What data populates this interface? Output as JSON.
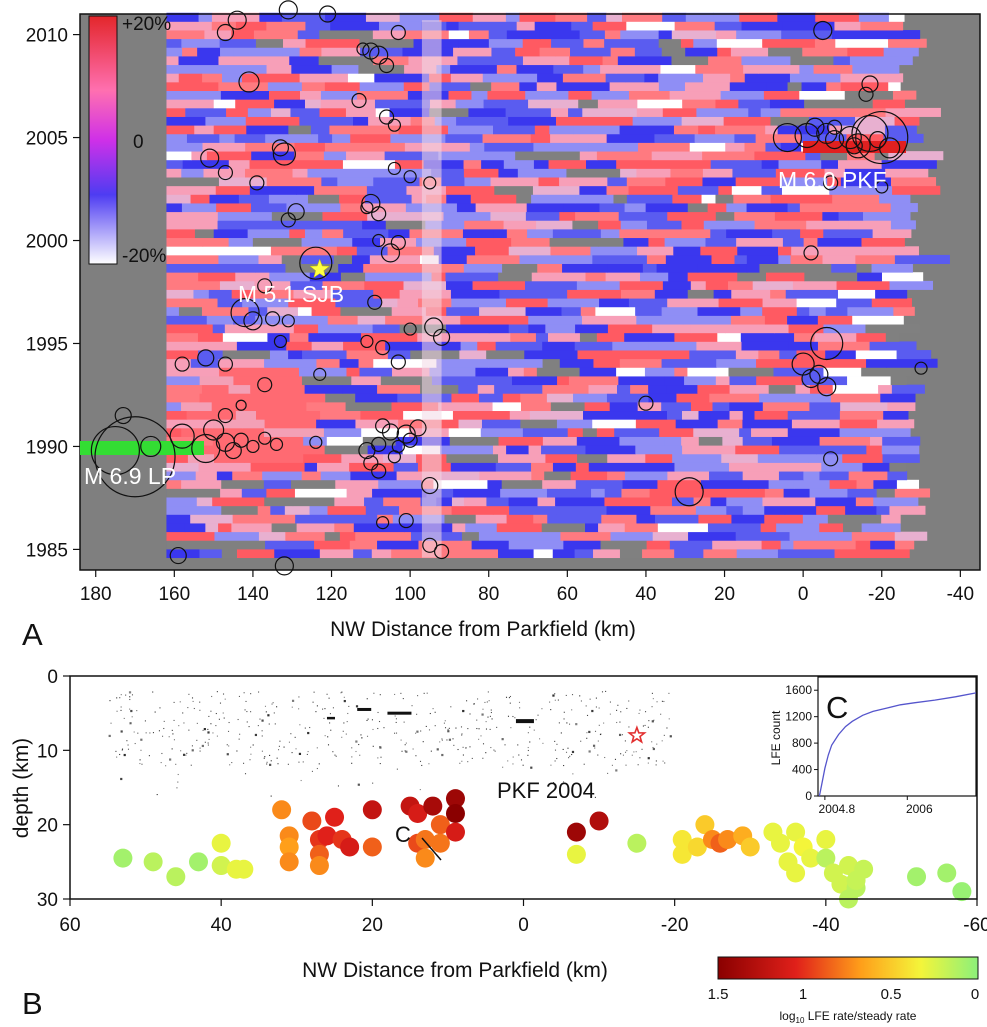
{
  "colors": {
    "map_pos": "#ff5a62",
    "map_neg": "#3a37ee",
    "map_mid": "#ffffff",
    "gap": "#808080",
    "lp_bar": "#33dd33",
    "pkf_bar": "#e12020",
    "sjb_star": "#ffff44",
    "pkf2004_star": "#e23030",
    "inset_line": "#5555cc"
  },
  "panelA": {
    "label": "A",
    "xlabel": "NW Distance from Parkfield (km)",
    "xticks": [
      "180",
      "160",
      "140",
      "120",
      "100",
      "80",
      "60",
      "40",
      "20",
      "0",
      "-20",
      "-40"
    ],
    "yticks": [
      "2010",
      "2005",
      "2000",
      "1995",
      "1990",
      "1985"
    ],
    "colorbar_labels": [
      "+20%",
      "0",
      "-20%"
    ],
    "annotations": {
      "lp": "M 6.9 LP",
      "sjb": "M 5.1 SJB",
      "pkf": "M 6.0 PKF"
    }
  },
  "panelB": {
    "label": "B",
    "xlabel": "NW Distance from Parkfield (km)",
    "ylabel": "depth (km)",
    "xticks": [
      "60",
      "40",
      "20",
      "0",
      "-20",
      "-40",
      "-60"
    ],
    "yticks": [
      "0",
      "10",
      "20",
      "30"
    ],
    "pkf_label": "PKF 2004",
    "c_marker": "C",
    "colorbar_ticks": [
      "1.5",
      "1",
      "0.5",
      "0"
    ],
    "colorbar_title_main": "log",
    "colorbar_title_sub": "10",
    "colorbar_title_rest": " LFE rate/steady rate"
  },
  "panelC": {
    "label": "C",
    "ylabel": "LFE count",
    "xticks": [
      "2004.8",
      "2006"
    ],
    "yticks": [
      "0",
      "400",
      "800",
      "1200",
      "1600"
    ]
  },
  "chart_data": [
    {
      "type": "heatmap",
      "title": "",
      "xlabel": "NW Distance from Parkfield (km)",
      "ylabel": "",
      "xlim": [
        184,
        -45
      ],
      "ylim": [
        1984,
        2011
      ],
      "colorbar": {
        "range": [
          "-20%",
          "+20%"
        ],
        "mid": "0"
      },
      "events": [
        {
          "name": "M 6.9 LP",
          "x_range": [
            184,
            153
          ],
          "y": 1989.8
        },
        {
          "name": "M 5.1 SJB",
          "x": 123,
          "y": 1998.7
        },
        {
          "name": "M 6.0 PKF",
          "x_range": [
            -1,
            -25
          ],
          "y": 2004.8
        }
      ],
      "earthquakes": [
        {
          "x": 170,
          "y": 1989.5,
          "r": 40
        },
        {
          "x": 175,
          "y": 1989.8,
          "r": 24
        },
        {
          "x": 173,
          "y": 1991.5,
          "r": 8
        },
        {
          "x": 166,
          "y": 1990.0,
          "r": 10
        },
        {
          "x": 158,
          "y": 1990.5,
          "r": 12
        },
        {
          "x": 152,
          "y": 1989.9,
          "r": 14
        },
        {
          "x": 150,
          "y": 1990.8,
          "r": 10
        },
        {
          "x": 147,
          "y": 1990.2,
          "r": 9
        },
        {
          "x": 145,
          "y": 1989.8,
          "r": 8
        },
        {
          "x": 143,
          "y": 1990.3,
          "r": 7
        },
        {
          "x": 140,
          "y": 1990.0,
          "r": 6
        },
        {
          "x": 137,
          "y": 1990.4,
          "r": 6
        },
        {
          "x": 134,
          "y": 1990.1,
          "r": 6
        },
        {
          "x": 147,
          "y": 1991.5,
          "r": 7
        },
        {
          "x": 143,
          "y": 1992.0,
          "r": 5
        },
        {
          "x": 137,
          "y": 1993.0,
          "r": 7
        },
        {
          "x": 142,
          "y": 1996.5,
          "r": 14
        },
        {
          "x": 140,
          "y": 1996.1,
          "r": 9
        },
        {
          "x": 135,
          "y": 1996.2,
          "r": 7
        },
        {
          "x": 131,
          "y": 1996.1,
          "r": 6
        },
        {
          "x": 133,
          "y": 1995.1,
          "r": 6
        },
        {
          "x": 147,
          "y": 1994.0,
          "r": 7
        },
        {
          "x": 152,
          "y": 1994.3,
          "r": 8
        },
        {
          "x": 158,
          "y": 1994.0,
          "r": 7
        },
        {
          "x": 159,
          "y": 1984.7,
          "r": 8
        },
        {
          "x": 132,
          "y": 1984.2,
          "r": 9
        },
        {
          "x": 124,
          "y": 1998.9,
          "r": 16
        },
        {
          "x": 137,
          "y": 1997.8,
          "r": 7
        },
        {
          "x": 131,
          "y": 2001.0,
          "r": 7
        },
        {
          "x": 129,
          "y": 2001.4,
          "r": 8
        },
        {
          "x": 133,
          "y": 2004.5,
          "r": 8
        },
        {
          "x": 132,
          "y": 2004.2,
          "r": 11
        },
        {
          "x": 139,
          "y": 2002.8,
          "r": 7
        },
        {
          "x": 147,
          "y": 2003.3,
          "r": 7
        },
        {
          "x": 151,
          "y": 2004.0,
          "r": 9
        },
        {
          "x": 141,
          "y": 2007.7,
          "r": 10
        },
        {
          "x": 144,
          "y": 2010.7,
          "r": 9
        },
        {
          "x": 147,
          "y": 2010.1,
          "r": 8
        },
        {
          "x": 131,
          "y": 2011.2,
          "r": 9
        },
        {
          "x": 121,
          "y": 2011.0,
          "r": 8
        },
        {
          "x": 103,
          "y": 2010.1,
          "r": 7
        },
        {
          "x": 112,
          "y": 2009.3,
          "r": 6
        },
        {
          "x": 110,
          "y": 2009.2,
          "r": 8
        },
        {
          "x": 108,
          "y": 2009.0,
          "r": 9
        },
        {
          "x": 106,
          "y": 2008.5,
          "r": 7
        },
        {
          "x": 110,
          "y": 2001.8,
          "r": 9
        },
        {
          "x": 108,
          "y": 2001.3,
          "r": 7
        },
        {
          "x": 111,
          "y": 2001.6,
          "r": 6
        },
        {
          "x": 113,
          "y": 2006.8,
          "r": 7
        },
        {
          "x": 104,
          "y": 2003.5,
          "r": 6
        },
        {
          "x": 106,
          "y": 2006.0,
          "r": 7
        },
        {
          "x": 104,
          "y": 2005.6,
          "r": 6
        },
        {
          "x": 108,
          "y": 2000.0,
          "r": 6
        },
        {
          "x": 103,
          "y": 1999.9,
          "r": 7
        },
        {
          "x": 105,
          "y": 1999.4,
          "r": 9
        },
        {
          "x": 109,
          "y": 1997.0,
          "r": 7
        },
        {
          "x": 111,
          "y": 1995.1,
          "r": 6
        },
        {
          "x": 107,
          "y": 1994.8,
          "r": 7
        },
        {
          "x": 100,
          "y": 1995.7,
          "r": 6
        },
        {
          "x": 103,
          "y": 1994.1,
          "r": 7
        },
        {
          "x": 107,
          "y": 1991.0,
          "r": 7
        },
        {
          "x": 105,
          "y": 1990.7,
          "r": 8
        },
        {
          "x": 101,
          "y": 1990.6,
          "r": 9
        },
        {
          "x": 103,
          "y": 1990.0,
          "r": 6
        },
        {
          "x": 108,
          "y": 1990.1,
          "r": 7
        },
        {
          "x": 111,
          "y": 1989.8,
          "r": 8
        },
        {
          "x": 110,
          "y": 1989.2,
          "r": 7
        },
        {
          "x": 108,
          "y": 1988.8,
          "r": 7
        },
        {
          "x": 104,
          "y": 1989.5,
          "r": 6
        },
        {
          "x": 100,
          "y": 1990.3,
          "r": 7
        },
        {
          "x": 98,
          "y": 1990.9,
          "r": 8
        },
        {
          "x": 123,
          "y": 1993.5,
          "r": 6
        },
        {
          "x": 124,
          "y": 1990.2,
          "r": 6
        },
        {
          "x": 107,
          "y": 1986.3,
          "r": 6
        },
        {
          "x": 101,
          "y": 1986.4,
          "r": 7
        },
        {
          "x": 95,
          "y": 1985.2,
          "r": 7
        },
        {
          "x": 92,
          "y": 1984.9,
          "r": 7
        },
        {
          "x": 95,
          "y": 1988.1,
          "r": 8
        },
        {
          "x": 92,
          "y": 1995.3,
          "r": 8
        },
        {
          "x": 94,
          "y": 1995.8,
          "r": 9
        },
        {
          "x": 95,
          "y": 2002.8,
          "r": 6
        },
        {
          "x": 100,
          "y": 2003.1,
          "r": 6
        },
        {
          "x": 40,
          "y": 1992.1,
          "r": 7
        },
        {
          "x": 29,
          "y": 1987.8,
          "r": 14
        },
        {
          "x": 4,
          "y": 2005.0,
          "r": 14
        },
        {
          "x": -1,
          "y": 2005.1,
          "r": 12
        },
        {
          "x": -3,
          "y": 2005.5,
          "r": 9
        },
        {
          "x": -6,
          "y": 2005.2,
          "r": 10
        },
        {
          "x": -8,
          "y": 2004.9,
          "r": 9
        },
        {
          "x": -12,
          "y": 2005.0,
          "r": 11
        },
        {
          "x": -17,
          "y": 2005.2,
          "r": 18
        },
        {
          "x": -20,
          "y": 2005.0,
          "r": 26
        },
        {
          "x": -22,
          "y": 2004.5,
          "r": 10
        },
        {
          "x": -19,
          "y": 2004.9,
          "r": 8
        },
        {
          "x": -13,
          "y": 2004.6,
          "r": 8
        },
        {
          "x": -8,
          "y": 2005.5,
          "r": 7
        },
        {
          "x": -7,
          "y": 2002.8,
          "r": 7
        },
        {
          "x": -20,
          "y": 2002.6,
          "r": 6
        },
        {
          "x": -16,
          "y": 2007.1,
          "r": 7
        },
        {
          "x": -17,
          "y": 2007.6,
          "r": 8
        },
        {
          "x": -5,
          "y": 2010.2,
          "r": 9
        },
        {
          "x": 0,
          "y": 1994.0,
          "r": 11
        },
        {
          "x": -2,
          "y": 1993.3,
          "r": 9
        },
        {
          "x": -6,
          "y": 1995.0,
          "r": 16
        },
        {
          "x": -4,
          "y": 1993.5,
          "r": 9
        },
        {
          "x": -6,
          "y": 1992.9,
          "r": 9
        },
        {
          "x": -7,
          "y": 1989.4,
          "r": 7
        },
        {
          "x": -2,
          "y": 1999.4,
          "r": 7
        },
        {
          "x": -30,
          "y": 1993.8,
          "r": 6
        },
        {
          "x": -14,
          "y": 2004.6,
          "r": 12
        }
      ]
    },
    {
      "type": "scatter",
      "title": "",
      "xlabel": "NW Distance from Parkfield (km)",
      "ylabel": "depth (km)",
      "xlim": [
        60,
        -60
      ],
      "ylim": [
        0,
        30
      ],
      "colorbar": {
        "label": "log10 LFE rate/steady rate",
        "range": [
          1.5,
          0
        ]
      },
      "points": [
        {
          "x": 53,
          "y": 24.5,
          "v": 0.1
        },
        {
          "x": 49,
          "y": 25,
          "v": 0.2
        },
        {
          "x": 46,
          "y": 27,
          "v": 0.2
        },
        {
          "x": 43,
          "y": 25,
          "v": 0.1
        },
        {
          "x": 40,
          "y": 22.5,
          "v": 0.4
        },
        {
          "x": 40,
          "y": 25.5,
          "v": 0.3
        },
        {
          "x": 38,
          "y": 26,
          "v": 0.4
        },
        {
          "x": 37,
          "y": 26,
          "v": 0.4
        },
        {
          "x": 32,
          "y": 18,
          "v": 0.8
        },
        {
          "x": 31,
          "y": 21.5,
          "v": 0.8
        },
        {
          "x": 31,
          "y": 23,
          "v": 0.75
        },
        {
          "x": 31,
          "y": 25,
          "v": 0.8
        },
        {
          "x": 28,
          "y": 19.5,
          "v": 0.95
        },
        {
          "x": 27,
          "y": 22,
          "v": 1.0
        },
        {
          "x": 27,
          "y": 24,
          "v": 0.9
        },
        {
          "x": 27,
          "y": 25.5,
          "v": 0.8
        },
        {
          "x": 26,
          "y": 21.5,
          "v": 1.05
        },
        {
          "x": 25,
          "y": 19,
          "v": 1.05
        },
        {
          "x": 24,
          "y": 22,
          "v": 1.0
        },
        {
          "x": 23,
          "y": 23,
          "v": 1.1
        },
        {
          "x": 20,
          "y": 18,
          "v": 1.2
        },
        {
          "x": 20,
          "y": 23,
          "v": 0.9
        },
        {
          "x": 15,
          "y": 17.5,
          "v": 1.2
        },
        {
          "x": 14,
          "y": 18.5,
          "v": 1.1
        },
        {
          "x": 14,
          "y": 22.5,
          "v": 0.95
        },
        {
          "x": 13,
          "y": 22,
          "v": 0.85
        },
        {
          "x": 13,
          "y": 24.5,
          "v": 0.8
        },
        {
          "x": 11,
          "y": 20,
          "v": 0.9
        },
        {
          "x": 11,
          "y": 22.5,
          "v": 0.85
        },
        {
          "x": 12,
          "y": 17.5,
          "v": 1.35
        },
        {
          "x": 9,
          "y": 16.5,
          "v": 1.4
        },
        {
          "x": 9,
          "y": 18.5,
          "v": 1.5
        },
        {
          "x": 9,
          "y": 21,
          "v": 1.1
        },
        {
          "x": -7,
          "y": 21,
          "v": 1.4
        },
        {
          "x": -10,
          "y": 19.5,
          "v": 1.3
        },
        {
          "x": -7,
          "y": 24,
          "v": 0.4
        },
        {
          "x": -15,
          "y": 22.5,
          "v": 0.2
        },
        {
          "x": -21,
          "y": 24,
          "v": 0.5
        },
        {
          "x": -21,
          "y": 22,
          "v": 0.5
        },
        {
          "x": -23,
          "y": 23,
          "v": 0.55
        },
        {
          "x": -24,
          "y": 20,
          "v": 0.6
        },
        {
          "x": -25,
          "y": 22,
          "v": 0.8
        },
        {
          "x": -26,
          "y": 22.5,
          "v": 0.9
        },
        {
          "x": -27,
          "y": 22,
          "v": 0.8
        },
        {
          "x": -29,
          "y": 21.5,
          "v": 0.7
        },
        {
          "x": -30,
          "y": 23,
          "v": 0.6
        },
        {
          "x": -33,
          "y": 21,
          "v": 0.4
        },
        {
          "x": -34,
          "y": 22.5,
          "v": 0.4
        },
        {
          "x": -35,
          "y": 25,
          "v": 0.4
        },
        {
          "x": -36,
          "y": 21,
          "v": 0.4
        },
        {
          "x": -37,
          "y": 23,
          "v": 0.45
        },
        {
          "x": -38,
          "y": 24.5,
          "v": 0.4
        },
        {
          "x": -36,
          "y": 26.5,
          "v": 0.4
        },
        {
          "x": -40,
          "y": 22,
          "v": 0.4
        },
        {
          "x": -40,
          "y": 24.5,
          "v": 0.2
        },
        {
          "x": -41,
          "y": 26.5,
          "v": 0.3
        },
        {
          "x": -42,
          "y": 28,
          "v": 0.3
        },
        {
          "x": -43,
          "y": 25.5,
          "v": 0.3
        },
        {
          "x": -44,
          "y": 28.5,
          "v": 0.2
        },
        {
          "x": -44,
          "y": 27.5,
          "v": 0.25
        },
        {
          "x": -45,
          "y": 26,
          "v": 0.25
        },
        {
          "x": -52,
          "y": 27,
          "v": 0.1
        },
        {
          "x": -56,
          "y": 26.5,
          "v": 0.1
        },
        {
          "x": -58,
          "y": 29,
          "v": 0.05
        },
        {
          "x": -43,
          "y": 30,
          "v": 0.2
        }
      ],
      "pkf_2004": {
        "x": -15,
        "y": 8
      }
    },
    {
      "type": "line",
      "title": "",
      "xlabel": "",
      "ylabel": "LFE count",
      "xlim": [
        2004.7,
        2007.0
      ],
      "ylim": [
        0,
        1800
      ],
      "series": [
        {
          "x": [
            2004.72,
            2004.75,
            2004.8,
            2004.85,
            2004.9,
            2005.0,
            2005.1,
            2005.2,
            2005.35,
            2005.5,
            2005.7,
            2005.9,
            2006.1,
            2006.4,
            2006.7,
            2007.0
          ],
          "y": [
            0,
            150,
            420,
            620,
            770,
            930,
            1050,
            1130,
            1220,
            1280,
            1330,
            1380,
            1410,
            1450,
            1500,
            1560
          ]
        }
      ]
    }
  ]
}
